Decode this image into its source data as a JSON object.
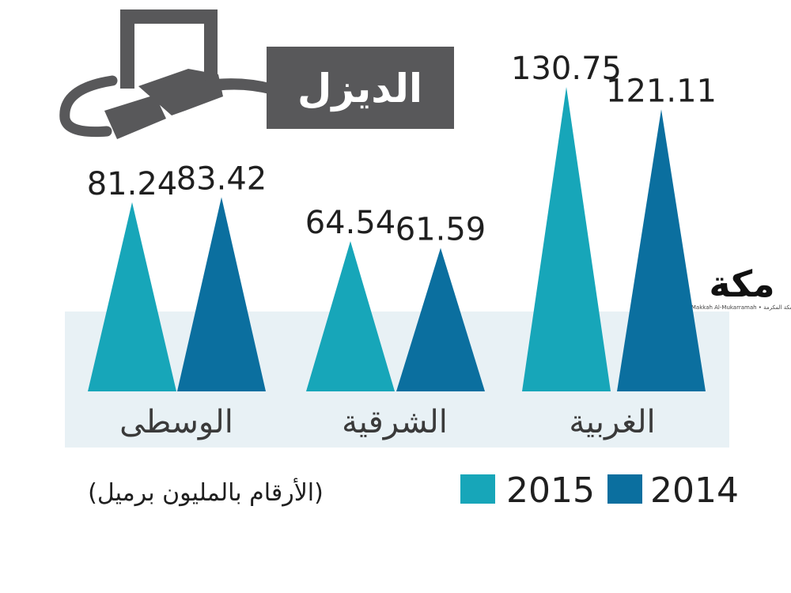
{
  "title": "الديزل",
  "note": "(الأرقام بالمليون برميل)",
  "logo": {
    "text": "مكة",
    "subtitle": "Makkah Al-Mukarramah • مكة المكرمة"
  },
  "colors": {
    "y2015": "#17a6b9",
    "y2014": "#0b6f9f",
    "band": "#e8f1f5",
    "icon": "#58585a"
  },
  "icons": {
    "title_graphic": "fuel-nozzle-icon"
  },
  "legend": [
    {
      "label": "2015",
      "color": "#17a6b9"
    },
    {
      "label": "2014",
      "color": "#0b6f9f"
    }
  ],
  "chart_data": {
    "type": "bar",
    "title": "الديزل",
    "note": "(الأرقام بالمليون برميل)",
    "categories": [
      "الوسطى",
      "الشرقية",
      "الغربية"
    ],
    "series": [
      {
        "name": "2015",
        "values": [
          81.24,
          64.54,
          130.75
        ],
        "labels": [
          "81.24",
          "64.54",
          "130.75"
        ]
      },
      {
        "name": "2014",
        "values": [
          83.42,
          61.59,
          121.11
        ],
        "labels": [
          "83.42",
          "61.59",
          "121.11"
        ]
      }
    ],
    "grid": false,
    "legend_position": "bottom-right"
  }
}
